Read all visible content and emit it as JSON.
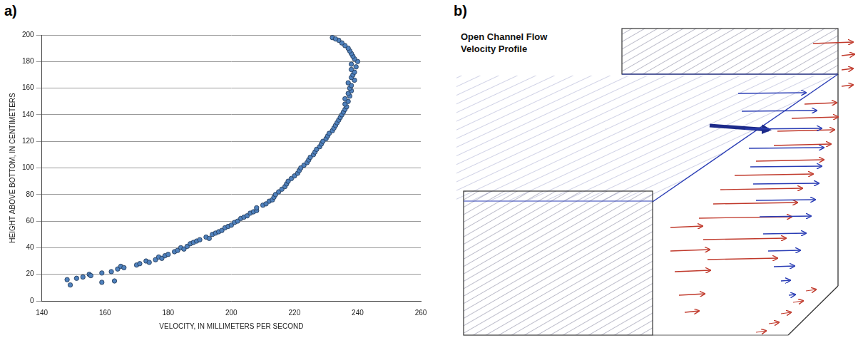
{
  "panel_labels": [
    "a)",
    "b)"
  ],
  "chart_data": {
    "type": "scatter",
    "x_label": "VELOCITY, IN MILLIMETERS PER SECOND",
    "y_label": "HEIGHT ABOVE BOTTOM, IN CENTIMETERS",
    "x": [
      148,
      149,
      151,
      153,
      155,
      155.5,
      159,
      159,
      162,
      163,
      164,
      165,
      166,
      170,
      171,
      173,
      174,
      176,
      177,
      178,
      179,
      180,
      182,
      183,
      184,
      185,
      186,
      187,
      188,
      189,
      190,
      192,
      193,
      194,
      195,
      196,
      197,
      198,
      199,
      200,
      201,
      202,
      203,
      204,
      205,
      206,
      207,
      208,
      208,
      210,
      211,
      212,
      213,
      213.5,
      214,
      215,
      216,
      217,
      217.5,
      218,
      219,
      220,
      221,
      221.5,
      222,
      223,
      224,
      224.5,
      225,
      226,
      226.5,
      227,
      228,
      228.5,
      229,
      230,
      230.5,
      231,
      232,
      232.5,
      233,
      233.5,
      234,
      234.5,
      235,
      235.5,
      236,
      236.5,
      236,
      237,
      236,
      237.5,
      237,
      238,
      237.5,
      238,
      237,
      239,
      238,
      238.5,
      239,
      238,
      239.5,
      238,
      240,
      239,
      238.5,
      238,
      237.5,
      237,
      236,
      235,
      234,
      232,
      233
    ],
    "values": [
      16,
      12,
      17,
      18,
      20,
      19,
      21,
      14,
      22,
      15,
      24,
      26,
      25,
      27,
      28,
      30,
      29,
      31,
      33,
      32,
      34,
      35,
      37,
      38,
      40,
      39,
      41,
      43,
      44,
      45,
      46,
      48,
      47,
      50,
      51,
      52,
      53,
      55,
      56,
      57,
      59,
      60,
      62,
      63,
      64,
      66,
      67,
      68,
      70,
      72,
      73,
      75,
      76,
      78,
      80,
      82,
      84,
      86,
      88,
      90,
      92,
      94,
      96,
      98,
      100,
      102,
      104,
      106,
      108,
      110,
      112,
      114,
      116,
      118,
      120,
      122,
      124,
      126,
      128,
      130,
      132,
      134,
      136,
      138,
      140,
      142,
      144,
      146,
      148,
      150,
      152,
      154,
      156,
      158,
      160,
      162,
      164,
      166,
      168,
      170,
      172,
      174,
      176,
      178,
      180,
      182,
      184,
      186,
      188,
      190,
      192,
      194,
      196,
      198,
      197
    ],
    "color": "#4f81bd",
    "marker": "circle",
    "xlim": [
      140,
      260
    ],
    "xticks": [
      140,
      160,
      180,
      200,
      220,
      240,
      260
    ],
    "ylim": [
      0,
      200
    ],
    "yticks": [
      0,
      20,
      40,
      60,
      80,
      100,
      120,
      140,
      160,
      180,
      200
    ],
    "grid": "y"
  },
  "diagram": {
    "title": [
      "Open Channel Flow",
      "Velocity Profile"
    ]
  }
}
